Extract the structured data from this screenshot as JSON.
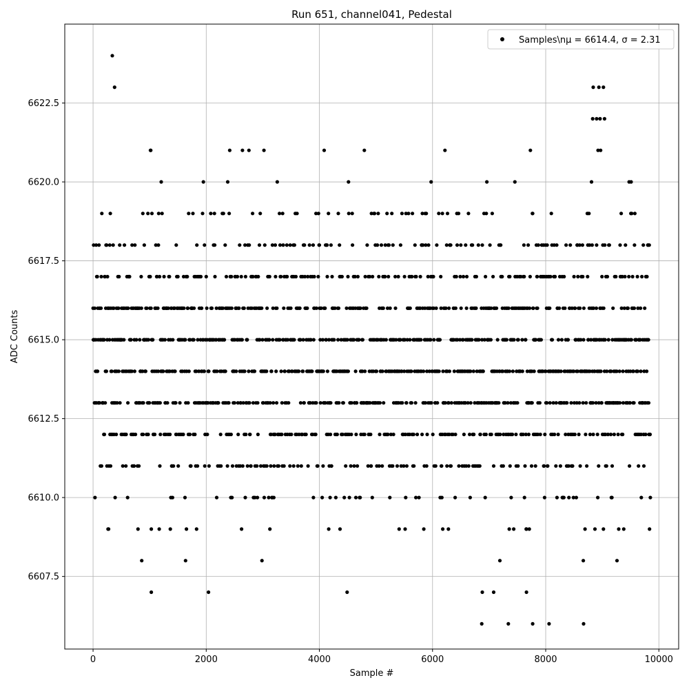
{
  "chart_data": {
    "type": "scatter",
    "title": "Run 651, channel041, Pedestal",
    "xlabel": "Sample #",
    "ylabel": "ADC Counts",
    "xlim": [
      -500,
      10350
    ],
    "ylim": [
      6605.2,
      6625.0
    ],
    "xticks": [
      0,
      2000,
      4000,
      6000,
      8000,
      10000
    ],
    "yticks": [
      6607.5,
      6610.0,
      6612.5,
      6615.0,
      6617.5,
      6620.0,
      6622.5
    ],
    "xtick_labels": [
      "0",
      "2000",
      "4000",
      "6000",
      "8000",
      "10000"
    ],
    "ytick_labels": [
      "6607.5",
      "6610.0",
      "6612.5",
      "6615.0",
      "6617.5",
      "6620.0",
      "6622.5"
    ],
    "grid": true,
    "legend_position": "top-right",
    "series": [
      {
        "name": "Samples\\nμ = 6614.4, σ = 2.31",
        "color": "#000000",
        "marker": "circle",
        "x_range": [
          0,
          9850
        ],
        "mean": 6614.4,
        "sigma": 2.31,
        "outliers": [
          {
            "x": 340,
            "y": 6624
          },
          {
            "x": 380,
            "y": 6623
          },
          {
            "x": 8840,
            "y": 6623
          },
          {
            "x": 8940,
            "y": 6623
          },
          {
            "x": 9020,
            "y": 6623
          },
          {
            "x": 8830,
            "y": 6622
          },
          {
            "x": 8900,
            "y": 6622
          },
          {
            "x": 8960,
            "y": 6622
          },
          {
            "x": 9040,
            "y": 6622
          },
          {
            "x": 1030,
            "y": 6607
          },
          {
            "x": 2040,
            "y": 6607
          },
          {
            "x": 4490,
            "y": 6607
          },
          {
            "x": 6880,
            "y": 6607
          },
          {
            "x": 7080,
            "y": 6607
          },
          {
            "x": 7660,
            "y": 6607
          },
          {
            "x": 6870,
            "y": 6606
          },
          {
            "x": 7340,
            "y": 6606
          },
          {
            "x": 7770,
            "y": 6606
          },
          {
            "x": 8060,
            "y": 6606
          },
          {
            "x": 8670,
            "y": 6606
          }
        ]
      }
    ]
  }
}
